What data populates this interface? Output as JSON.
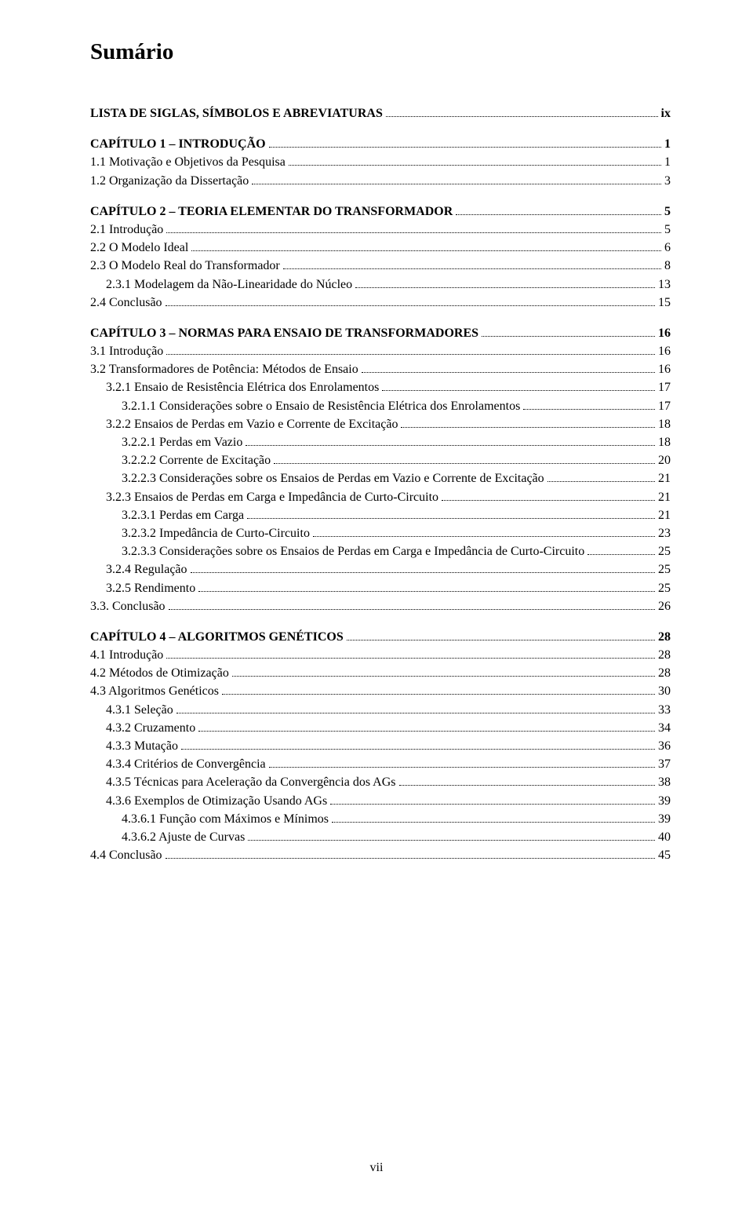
{
  "title": "Sumário",
  "page_number": "vii",
  "entries": [
    {
      "label": "LISTA DE SIGLAS, SÍMBOLOS E ABREVIATURAS",
      "page": "ix",
      "level": 0,
      "bold": true,
      "gap": false
    },
    {
      "label": "CAPÍTULO 1 – INTRODUÇÃO",
      "page": "1",
      "level": 0,
      "bold": true,
      "gap": true
    },
    {
      "label": "1.1 Motivação e Objetivos da Pesquisa",
      "page": "1",
      "level": 0,
      "bold": false,
      "gap": false
    },
    {
      "label": "1.2 Organização da Dissertação",
      "page": "3",
      "level": 0,
      "bold": false,
      "gap": false
    },
    {
      "label": "CAPÍTULO 2 – TEORIA ELEMENTAR DO TRANSFORMADOR",
      "page": "5",
      "level": 0,
      "bold": true,
      "gap": true
    },
    {
      "label": "2.1 Introdução",
      "page": "5",
      "level": 0,
      "bold": false,
      "gap": false
    },
    {
      "label": "2.2 O Modelo Ideal",
      "page": "6",
      "level": 0,
      "bold": false,
      "gap": false
    },
    {
      "label": "2.3 O Modelo Real do Transformador",
      "page": "8",
      "level": 0,
      "bold": false,
      "gap": false
    },
    {
      "label": "2.3.1 Modelagem da Não-Linearidade do Núcleo",
      "page": "13",
      "level": 1,
      "bold": false,
      "gap": false
    },
    {
      "label": "2.4 Conclusão",
      "page": "15",
      "level": 0,
      "bold": false,
      "gap": false
    },
    {
      "label": "CAPÍTULO 3 – NORMAS PARA ENSAIO DE TRANSFORMADORES",
      "page": "16",
      "level": 0,
      "bold": true,
      "gap": true
    },
    {
      "label": "3.1 Introdução",
      "page": "16",
      "level": 0,
      "bold": false,
      "gap": false
    },
    {
      "label": "3.2 Transformadores de Potência: Métodos de Ensaio",
      "page": "16",
      "level": 0,
      "bold": false,
      "gap": false
    },
    {
      "label": "3.2.1 Ensaio de Resistência Elétrica dos Enrolamentos",
      "page": "17",
      "level": 1,
      "bold": false,
      "gap": false
    },
    {
      "label": "3.2.1.1 Considerações sobre o Ensaio de Resistência Elétrica dos Enrolamentos",
      "page": "17",
      "level": 2,
      "bold": false,
      "gap": false
    },
    {
      "label": "3.2.2 Ensaios de Perdas em Vazio e Corrente de Excitação",
      "page": "18",
      "level": 1,
      "bold": false,
      "gap": false
    },
    {
      "label": "3.2.2.1 Perdas em Vazio",
      "page": "18",
      "level": 2,
      "bold": false,
      "gap": false
    },
    {
      "label": "3.2.2.2 Corrente de Excitação",
      "page": "20",
      "level": 2,
      "bold": false,
      "gap": false
    },
    {
      "label": "3.2.2.3 Considerações sobre os Ensaios de Perdas em Vazio e Corrente de Excitação",
      "page": "21",
      "level": 2,
      "bold": false,
      "gap": false
    },
    {
      "label": "3.2.3 Ensaios de Perdas em Carga e Impedância de Curto-Circuito",
      "page": "21",
      "level": 1,
      "bold": false,
      "gap": false
    },
    {
      "label": "3.2.3.1 Perdas em Carga",
      "page": "21",
      "level": 2,
      "bold": false,
      "gap": false
    },
    {
      "label": "3.2.3.2 Impedância de Curto-Circuito",
      "page": "23",
      "level": 2,
      "bold": false,
      "gap": false
    },
    {
      "label": "3.2.3.3 Considerações sobre os Ensaios de Perdas em Carga e Impedância de Curto-Circuito",
      "page": "25",
      "level": 2,
      "bold": false,
      "gap": false
    },
    {
      "label": "3.2.4 Regulação",
      "page": "25",
      "level": 1,
      "bold": false,
      "gap": false
    },
    {
      "label": "3.2.5 Rendimento",
      "page": "25",
      "level": 1,
      "bold": false,
      "gap": false
    },
    {
      "label": "3.3. Conclusão",
      "page": "26",
      "level": 0,
      "bold": false,
      "gap": false
    },
    {
      "label": "CAPÍTULO 4 – ALGORITMOS GENÉTICOS",
      "page": "28",
      "level": 0,
      "bold": true,
      "gap": true
    },
    {
      "label": "4.1 Introdução",
      "page": "28",
      "level": 0,
      "bold": false,
      "gap": false
    },
    {
      "label": "4.2 Métodos de Otimização",
      "page": "28",
      "level": 0,
      "bold": false,
      "gap": false
    },
    {
      "label": "4.3 Algoritmos Genéticos",
      "page": "30",
      "level": 0,
      "bold": false,
      "gap": false
    },
    {
      "label": "4.3.1 Seleção",
      "page": "33",
      "level": 1,
      "bold": false,
      "gap": false
    },
    {
      "label": "4.3.2 Cruzamento",
      "page": "34",
      "level": 1,
      "bold": false,
      "gap": false
    },
    {
      "label": "4.3.3 Mutação",
      "page": "36",
      "level": 1,
      "bold": false,
      "gap": false
    },
    {
      "label": "4.3.4 Critérios de Convergência",
      "page": "37",
      "level": 1,
      "bold": false,
      "gap": false
    },
    {
      "label": "4.3.5 Técnicas para Aceleração da Convergência dos AGs",
      "page": "38",
      "level": 1,
      "bold": false,
      "gap": false
    },
    {
      "label": "4.3.6 Exemplos de Otimização Usando AGs",
      "page": "39",
      "level": 1,
      "bold": false,
      "gap": false
    },
    {
      "label": "4.3.6.1 Função com Máximos e Mínimos",
      "page": "39",
      "level": 2,
      "bold": false,
      "gap": false
    },
    {
      "label": "4.3.6.2 Ajuste de Curvas",
      "page": "40",
      "level": 2,
      "bold": false,
      "gap": false
    },
    {
      "label": "4.4 Conclusão",
      "page": "45",
      "level": 0,
      "bold": false,
      "gap": false
    }
  ]
}
